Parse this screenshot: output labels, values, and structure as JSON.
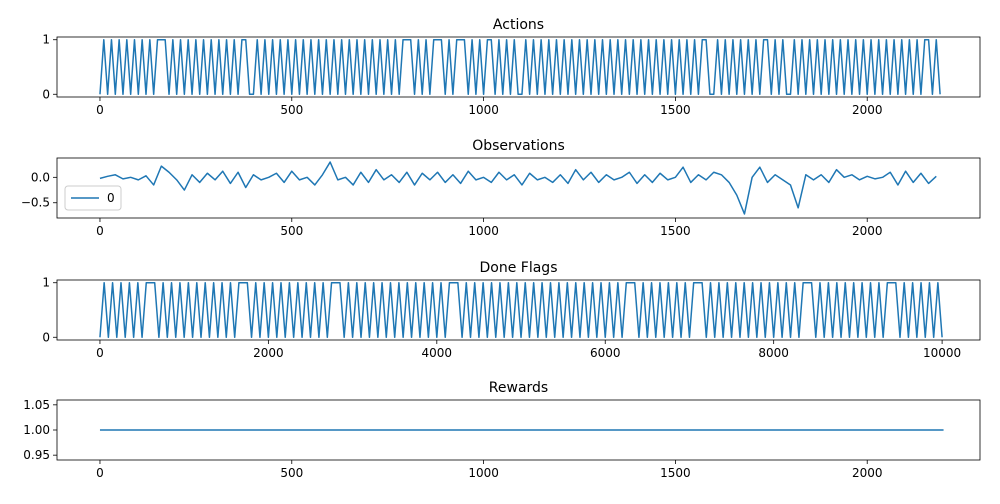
{
  "chart_data": [
    {
      "type": "line",
      "title": "Actions",
      "xlim": [
        -112,
        2294
      ],
      "ylim": [
        -0.05,
        1.05
      ],
      "xticks": [
        0,
        500,
        1000,
        1500,
        2000
      ],
      "yticks": [
        0,
        1
      ],
      "x": [
        0,
        10,
        20,
        30,
        40,
        50,
        60,
        70,
        80,
        90,
        100,
        110,
        120,
        130,
        140,
        150,
        160,
        170,
        180,
        190,
        200,
        210,
        220,
        230,
        240,
        250,
        260,
        270,
        280,
        290,
        300,
        310,
        320,
        330,
        340,
        350,
        360,
        370,
        380,
        390,
        400,
        410,
        420,
        430,
        440,
        450,
        460,
        470,
        480,
        490,
        500,
        510,
        520,
        530,
        540,
        550,
        560,
        570,
        580,
        590,
        600,
        610,
        620,
        630,
        640,
        650,
        660,
        670,
        680,
        690,
        700,
        710,
        720,
        730,
        740,
        750,
        760,
        770,
        780,
        790,
        800,
        810,
        820,
        830,
        840,
        850,
        860,
        870,
        880,
        890,
        900,
        910,
        920,
        930,
        940,
        950,
        960,
        970,
        980,
        990,
        1000,
        1010,
        1020,
        1030,
        1040,
        1050,
        1060,
        1070,
        1080,
        1090,
        1100,
        1110,
        1120,
        1130,
        1140,
        1150,
        1160,
        1170,
        1180,
        1190,
        1200,
        1210,
        1220,
        1230,
        1240,
        1250,
        1260,
        1270,
        1280,
        1290,
        1300,
        1310,
        1320,
        1330,
        1340,
        1350,
        1360,
        1370,
        1380,
        1390,
        1400,
        1410,
        1420,
        1430,
        1440,
        1450,
        1460,
        1470,
        1480,
        1490,
        1500,
        1510,
        1520,
        1530,
        1540,
        1550,
        1560,
        1570,
        1580,
        1590,
        1600,
        1610,
        1620,
        1630,
        1640,
        1650,
        1660,
        1670,
        1680,
        1690,
        1700,
        1710,
        1720,
        1730,
        1740,
        1750,
        1760,
        1770,
        1780,
        1790,
        1800,
        1810,
        1820,
        1830,
        1840,
        1850,
        1860,
        1870,
        1880,
        1890,
        1900,
        1910,
        1920,
        1930,
        1940,
        1950,
        1960,
        1970,
        1980,
        1990,
        2000,
        2010,
        2020,
        2030,
        2040,
        2050,
        2060,
        2070,
        2080,
        2090,
        2100,
        2110,
        2120,
        2130,
        2140,
        2150,
        2160,
        2170,
        2180,
        2190
      ],
      "series": [
        {
          "color": "#1f77b4",
          "values": [
            0,
            1,
            0,
            1,
            0,
            1,
            0,
            1,
            0,
            1,
            0,
            1,
            0,
            1,
            0,
            1,
            1,
            1,
            0,
            1,
            0,
            1,
            0,
            1,
            0,
            1,
            0,
            1,
            0,
            1,
            0,
            1,
            0,
            1,
            0,
            1,
            0,
            1,
            1,
            0,
            0,
            1,
            0,
            1,
            0,
            1,
            0,
            1,
            0,
            1,
            0,
            1,
            0,
            1,
            0,
            1,
            0,
            1,
            0,
            1,
            0,
            1,
            0,
            1,
            0,
            1,
            0,
            1,
            0,
            1,
            0,
            1,
            0,
            1,
            0,
            1,
            0,
            1,
            0,
            1,
            1,
            1,
            0,
            1,
            0,
            1,
            0,
            1,
            1,
            1,
            0,
            1,
            0,
            1,
            1,
            1,
            0,
            1,
            0,
            1,
            0,
            1,
            1,
            0,
            1,
            0,
            1,
            0,
            1,
            0,
            0,
            1,
            0,
            1,
            0,
            1,
            0,
            1,
            0,
            1,
            0,
            1,
            0,
            1,
            0,
            1,
            0,
            1,
            0,
            1,
            0,
            1,
            0,
            1,
            0,
            1,
            0,
            1,
            0,
            1,
            0,
            1,
            0,
            1,
            0,
            1,
            0,
            1,
            0,
            1,
            0,
            1,
            0,
            1,
            0,
            1,
            0,
            1,
            1,
            0,
            0,
            1,
            0,
            1,
            0,
            1,
            0,
            1,
            0,
            1,
            0,
            1,
            0,
            1,
            1,
            0,
            1,
            0,
            1,
            0,
            0,
            1,
            0,
            1,
            0,
            1,
            0,
            1,
            0,
            1,
            0,
            1,
            0,
            1,
            0,
            1,
            0,
            1,
            0,
            1,
            0,
            1,
            0,
            1,
            0,
            1,
            0,
            1,
            0,
            1,
            0,
            1,
            0,
            1,
            0,
            1,
            1,
            0,
            1,
            0
          ]
        }
      ]
    },
    {
      "type": "line",
      "title": "Observations",
      "xlim": [
        -112,
        2294
      ],
      "ylim": [
        -0.8,
        0.38
      ],
      "xticks": [
        0,
        500,
        1000,
        1500,
        2000
      ],
      "yticks": [
        {
          "value": -0.5,
          "label": "−0.5"
        },
        {
          "value": 0,
          "label": "0.0"
        }
      ],
      "legend": "center left",
      "x": [
        0,
        20,
        40,
        60,
        80,
        100,
        120,
        140,
        160,
        180,
        200,
        220,
        240,
        260,
        280,
        300,
        320,
        340,
        360,
        380,
        400,
        420,
        440,
        460,
        480,
        500,
        520,
        540,
        560,
        580,
        600,
        620,
        640,
        660,
        680,
        700,
        720,
        740,
        760,
        780,
        800,
        820,
        840,
        860,
        880,
        900,
        920,
        940,
        960,
        980,
        1000,
        1020,
        1040,
        1060,
        1080,
        1100,
        1120,
        1140,
        1160,
        1180,
        1200,
        1220,
        1240,
        1260,
        1280,
        1300,
        1320,
        1340,
        1360,
        1380,
        1400,
        1420,
        1440,
        1460,
        1480,
        1500,
        1520,
        1540,
        1560,
        1580,
        1600,
        1620,
        1640,
        1660,
        1680,
        1700,
        1720,
        1740,
        1760,
        1780,
        1800,
        1820,
        1840,
        1860,
        1880,
        1900,
        1920,
        1940,
        1960,
        1980,
        2000,
        2020,
        2040,
        2060,
        2080,
        2100,
        2120,
        2140,
        2160,
        2180
      ],
      "series": [
        {
          "name": "0",
          "color": "#1f77b4",
          "values": [
            -0.02,
            0.02,
            0.05,
            -0.03,
            0.0,
            -0.05,
            0.03,
            -0.15,
            0.22,
            0.1,
            -0.05,
            -0.25,
            0.05,
            -0.1,
            0.08,
            -0.05,
            0.12,
            -0.12,
            0.1,
            -0.2,
            0.05,
            -0.05,
            0.0,
            0.08,
            -0.1,
            0.12,
            -0.05,
            0.0,
            -0.15,
            0.05,
            0.3,
            -0.05,
            0.0,
            -0.15,
            0.1,
            -0.1,
            0.15,
            -0.05,
            0.05,
            -0.1,
            0.1,
            -0.15,
            0.08,
            -0.05,
            0.1,
            -0.1,
            0.05,
            -0.12,
            0.12,
            -0.05,
            0.0,
            -0.1,
            0.1,
            -0.05,
            0.05,
            -0.15,
            0.08,
            -0.05,
            0.0,
            -0.1,
            0.05,
            -0.12,
            0.15,
            -0.05,
            0.1,
            -0.1,
            0.05,
            -0.05,
            0.0,
            0.1,
            -0.12,
            0.05,
            -0.1,
            0.08,
            -0.05,
            0.0,
            0.2,
            -0.1,
            0.05,
            -0.05,
            0.1,
            0.05,
            -0.1,
            -0.35,
            -0.72,
            0.0,
            0.2,
            -0.1,
            0.05,
            -0.05,
            -0.15,
            -0.6,
            0.05,
            -0.05,
            0.05,
            -0.1,
            0.15,
            0.0,
            0.05,
            -0.05,
            0.02,
            -0.03,
            0.0,
            0.1,
            -0.15,
            0.12,
            -0.1,
            0.08,
            -0.12,
            0.02
          ]
        }
      ]
    },
    {
      "type": "line",
      "title": "Done Flags",
      "xlim": [
        -510,
        10450
      ],
      "ylim": [
        -0.05,
        1.05
      ],
      "xticks": [
        0,
        2000,
        4000,
        6000,
        8000,
        10000
      ],
      "yticks": [
        0,
        1
      ],
      "x": [
        0,
        50,
        100,
        150,
        200,
        250,
        300,
        350,
        400,
        450,
        500,
        550,
        600,
        650,
        700,
        750,
        800,
        850,
        900,
        950,
        1000,
        1050,
        1100,
        1150,
        1200,
        1250,
        1300,
        1350,
        1400,
        1450,
        1500,
        1550,
        1600,
        1650,
        1700,
        1750,
        1800,
        1850,
        1900,
        1950,
        2000,
        2050,
        2100,
        2150,
        2200,
        2250,
        2300,
        2350,
        2400,
        2450,
        2500,
        2550,
        2600,
        2650,
        2700,
        2750,
        2800,
        2850,
        2900,
        2950,
        3000,
        3050,
        3100,
        3150,
        3200,
        3250,
        3300,
        3350,
        3400,
        3450,
        3500,
        3550,
        3600,
        3650,
        3700,
        3750,
        3800,
        3850,
        3900,
        3950,
        4000,
        4050,
        4100,
        4150,
        4200,
        4250,
        4300,
        4350,
        4400,
        4450,
        4500,
        4550,
        4600,
        4650,
        4700,
        4750,
        4800,
        4850,
        4900,
        4950,
        5000,
        5050,
        5100,
        5150,
        5200,
        5250,
        5300,
        5350,
        5400,
        5450,
        5500,
        5550,
        5600,
        5650,
        5700,
        5750,
        5800,
        5850,
        5900,
        5950,
        6000,
        6050,
        6100,
        6150,
        6200,
        6250,
        6300,
        6350,
        6400,
        6450,
        6500,
        6550,
        6600,
        6650,
        6700,
        6750,
        6800,
        6850,
        6900,
        6950,
        7000,
        7050,
        7100,
        7150,
        7200,
        7250,
        7300,
        7350,
        7400,
        7450,
        7500,
        7550,
        7600,
        7650,
        7700,
        7750,
        7800,
        7850,
        7900,
        7950,
        8000,
        8050,
        8100,
        8150,
        8200,
        8250,
        8300,
        8350,
        8400,
        8450,
        8500,
        8550,
        8600,
        8650,
        8700,
        8750,
        8800,
        8850,
        8900,
        8950,
        9000,
        9050,
        9100,
        9150,
        9200,
        9250,
        9300,
        9350,
        9400,
        9450,
        9500,
        9550,
        9600,
        9650,
        9700,
        9750,
        9800,
        9850,
        9900,
        9950,
        10000
      ],
      "series": [
        {
          "color": "#1f77b4",
          "values": [
            0,
            1,
            0,
            1,
            0,
            1,
            0,
            1,
            0,
            1,
            0,
            1,
            1,
            1,
            0,
            1,
            0,
            1,
            0,
            1,
            0,
            1,
            0,
            1,
            0,
            1,
            0,
            1,
            0,
            1,
            0,
            1,
            0,
            1,
            1,
            1,
            0,
            1,
            0,
            1,
            0,
            1,
            0,
            1,
            0,
            1,
            0,
            1,
            0,
            1,
            0,
            1,
            0,
            1,
            0,
            1,
            1,
            1,
            0,
            1,
            0,
            1,
            0,
            1,
            0,
            1,
            0,
            1,
            0,
            1,
            0,
            1,
            0,
            1,
            0,
            1,
            0,
            1,
            0,
            1,
            0,
            1,
            0,
            1,
            1,
            1,
            0,
            1,
            0,
            1,
            0,
            1,
            0,
            1,
            0,
            1,
            0,
            1,
            0,
            1,
            0,
            1,
            0,
            1,
            0,
            1,
            0,
            1,
            0,
            1,
            0,
            1,
            0,
            1,
            0,
            1,
            0,
            1,
            0,
            1,
            0,
            1,
            0,
            1,
            0,
            1,
            1,
            1,
            0,
            1,
            0,
            1,
            0,
            1,
            0,
            1,
            0,
            1,
            0,
            1,
            0,
            1,
            1,
            1,
            0,
            1,
            0,
            1,
            0,
            1,
            0,
            1,
            0,
            1,
            0,
            1,
            0,
            1,
            0,
            1,
            0,
            1,
            0,
            1,
            0,
            1,
            0,
            1,
            1,
            1,
            0,
            1,
            0,
            1,
            0,
            1,
            0,
            1,
            0,
            1,
            0,
            1,
            0,
            1,
            0,
            1,
            0,
            1,
            1,
            1,
            0,
            1,
            0,
            1,
            0,
            1,
            0,
            1,
            0,
            1,
            0
          ]
        }
      ]
    },
    {
      "type": "line",
      "title": "Rewards",
      "xlim": [
        -112,
        2294
      ],
      "ylim": [
        0.9404,
        1.0596
      ],
      "xticks": [
        0,
        500,
        1000,
        1500,
        2000
      ],
      "yticks": [
        {
          "value": 0.95,
          "label": "0.95"
        },
        {
          "value": 1,
          "label": "1.00"
        },
        {
          "value": 1.05,
          "label": "1.05"
        }
      ],
      "x": [
        0,
        2199
      ],
      "series": [
        {
          "color": "#1f77b4",
          "values": [
            1,
            1
          ]
        }
      ]
    }
  ]
}
